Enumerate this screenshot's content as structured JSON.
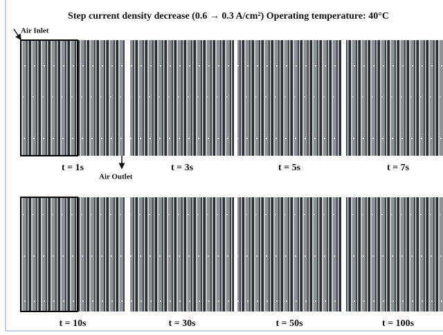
{
  "title": "Step current density decrease (0.6 → 0.3 A/cm²)  Operating temperature: 40°C",
  "annotations": {
    "inlet": "Air Inlet",
    "outlet": "Air Outlet"
  },
  "panels": [
    {
      "label": "t = 1s"
    },
    {
      "label": "t = 3s"
    },
    {
      "label": "t = 5s"
    },
    {
      "label": "t = 7s"
    },
    {
      "label": "t = 10s"
    },
    {
      "label": "t = 30s"
    },
    {
      "label": "t = 50s"
    },
    {
      "label": "t = 100s"
    }
  ]
}
